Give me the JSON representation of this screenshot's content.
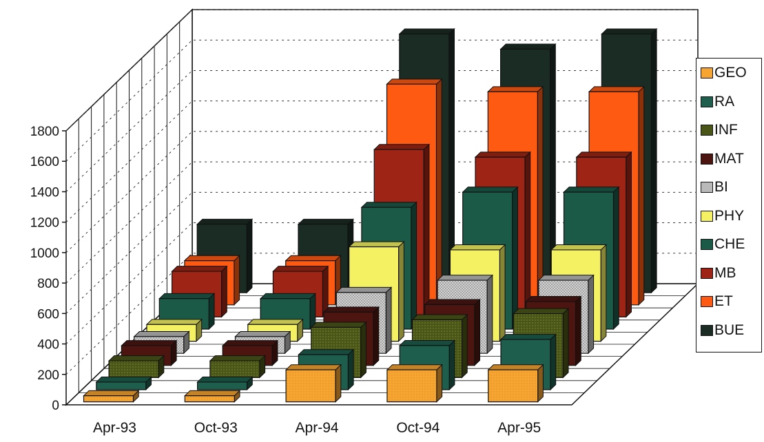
{
  "chart_data": {
    "type": "bar",
    "categories": [
      "Apr-93",
      "Oct-93",
      "Apr-94",
      "Oct-94",
      "Apr-95"
    ],
    "yticks": [
      "0",
      "200",
      "400",
      "600",
      "800",
      "1000",
      "1200",
      "1400",
      "1600",
      "1800"
    ],
    "ylim": [
      0,
      1800
    ],
    "grid": true,
    "legend_position": "right",
    "series": [
      {
        "name": "GEO",
        "color": "#f6a432",
        "values": [
          40,
          40,
          210,
          210,
          210
        ]
      },
      {
        "name": "RA",
        "color": "#1d5e4c",
        "values": [
          50,
          50,
          230,
          290,
          330
        ]
      },
      {
        "name": "INF",
        "color": "#4a5618",
        "values": [
          110,
          110,
          330,
          380,
          420
        ]
      },
      {
        "name": "MAT",
        "color": "#4c1510",
        "values": [
          130,
          130,
          350,
          400,
          420
        ]
      },
      {
        "name": "BI",
        "color": "#b9b9b9",
        "values": [
          110,
          110,
          400,
          480,
          480
        ]
      },
      {
        "name": "PHY",
        "color": "#f4f262",
        "values": [
          110,
          110,
          620,
          600,
          600
        ]
      },
      {
        "name": "CHE",
        "color": "#1c5a48",
        "values": [
          200,
          200,
          800,
          900,
          900
        ]
      },
      {
        "name": "MB",
        "color": "#9e2515",
        "values": [
          300,
          300,
          1100,
          1050,
          1050
        ]
      },
      {
        "name": "ET",
        "color": "#ff5a12",
        "values": [
          290,
          290,
          1450,
          1400,
          1400
        ]
      },
      {
        "name": "BUE",
        "color": "#1b2c24",
        "values": [
          450,
          450,
          1700,
          1600,
          1700
        ]
      }
    ]
  }
}
